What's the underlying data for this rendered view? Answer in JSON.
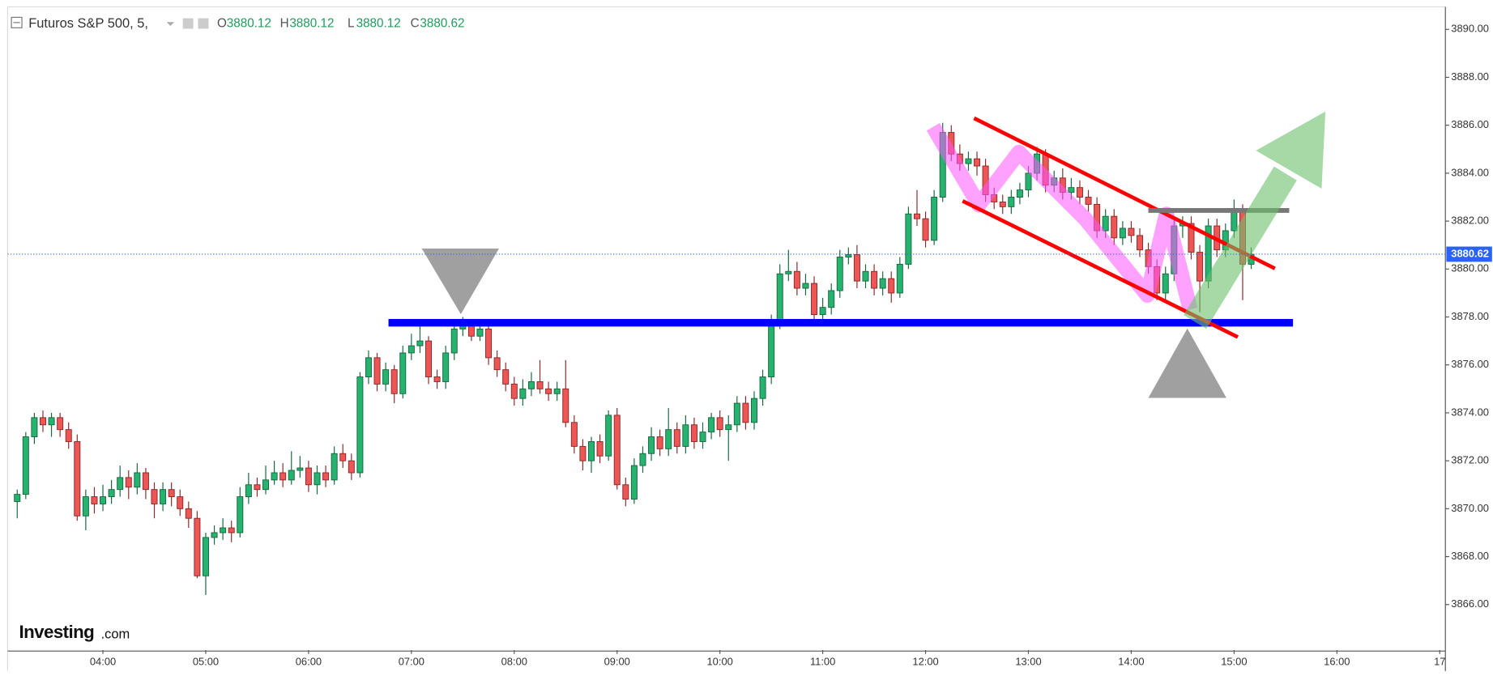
{
  "header": {
    "title": "Futuros S&P 500, 5,",
    "open_label": "O",
    "open": 3880.12,
    "high_label": "H",
    "high": 3880.12,
    "low_label": "L",
    "low": 3880.12,
    "close_label": "C",
    "close": 3880.62
  },
  "logo": {
    "brand": "Investing",
    "suffix": ".com"
  },
  "chart_data": {
    "type": "candlestick",
    "up_color": "#26b36f",
    "down_color": "#ee5555",
    "last_price": 3880.62,
    "xlim": [
      184.4,
      1023.3
    ],
    "xticks": [
      {
        "value": 240,
        "label": "04:00"
      },
      {
        "value": 300,
        "label": "05:00"
      },
      {
        "value": 360,
        "label": "06:00"
      },
      {
        "value": 420,
        "label": "07:00"
      },
      {
        "value": 480,
        "label": "08:00"
      },
      {
        "value": 540,
        "label": "09:00"
      },
      {
        "value": 600,
        "label": "10:00"
      },
      {
        "value": 660,
        "label": "11:00"
      },
      {
        "value": 720,
        "label": "12:00"
      },
      {
        "value": 780,
        "label": "13:00"
      },
      {
        "value": 840,
        "label": "14:00"
      },
      {
        "value": 900,
        "label": "15:00"
      },
      {
        "value": 960,
        "label": "16:00"
      },
      {
        "value": 1020,
        "label": "17"
      }
    ],
    "ylim": [
      3864.1,
      3890.9
    ],
    "yticks": [
      {
        "value": 3866,
        "label": "3866.00"
      },
      {
        "value": 3868,
        "label": "3868.00"
      },
      {
        "value": 3870,
        "label": "3870.00"
      },
      {
        "value": 3872,
        "label": "3872.00"
      },
      {
        "value": 3874,
        "label": "3874.00"
      },
      {
        "value": 3876,
        "label": "3876.00"
      },
      {
        "value": 3878,
        "label": "3878.00"
      },
      {
        "value": 3880,
        "label": "3880.00"
      },
      {
        "value": 3882,
        "label": "3882.00"
      },
      {
        "value": 3884,
        "label": "3884.00"
      },
      {
        "value": 3886,
        "label": "3886.00"
      },
      {
        "value": 3888,
        "label": "3888.00"
      },
      {
        "value": 3890,
        "label": "3890.00"
      }
    ],
    "x": [
      190,
      195,
      200,
      205,
      210,
      215,
      220,
      225,
      230,
      235,
      240,
      245,
      250,
      255,
      260,
      265,
      270,
      275,
      280,
      285,
      290,
      295,
      300,
      305,
      310,
      315,
      320,
      325,
      330,
      335,
      340,
      345,
      350,
      355,
      360,
      365,
      370,
      375,
      380,
      385,
      390,
      395,
      400,
      405,
      410,
      415,
      420,
      425,
      430,
      435,
      440,
      445,
      450,
      455,
      460,
      465,
      470,
      475,
      480,
      485,
      490,
      495,
      500,
      505,
      510,
      515,
      520,
      525,
      530,
      535,
      540,
      545,
      550,
      555,
      560,
      565,
      570,
      575,
      580,
      585,
      590,
      595,
      600,
      605,
      610,
      615,
      620,
      625,
      630,
      635,
      640,
      645,
      650,
      655,
      660,
      665,
      670,
      675,
      680,
      685,
      690,
      695,
      700,
      705,
      710,
      715,
      720,
      725,
      730,
      735,
      740,
      745,
      750,
      755,
      760,
      765,
      770,
      775,
      780,
      785,
      790,
      795,
      800,
      805,
      810,
      815,
      820,
      825,
      830,
      835,
      840,
      845,
      850,
      855,
      860,
      865,
      870,
      875,
      880,
      885,
      890,
      895,
      900,
      905,
      910
    ],
    "ohlc": [
      [
        3870.3,
        3870.8,
        3869.6,
        3870.6
      ],
      [
        3870.6,
        3873.2,
        3870.4,
        3873.0
      ],
      [
        3873.0,
        3874.0,
        3872.7,
        3873.8
      ],
      [
        3873.8,
        3874.1,
        3873.2,
        3873.5
      ],
      [
        3873.5,
        3874.0,
        3873.0,
        3873.8
      ],
      [
        3873.8,
        3874.0,
        3873.0,
        3873.3
      ],
      [
        3873.3,
        3873.6,
        3872.5,
        3872.8
      ],
      [
        3872.8,
        3873.1,
        3869.5,
        3869.7
      ],
      [
        3869.7,
        3870.8,
        3869.1,
        3870.5
      ],
      [
        3870.5,
        3870.9,
        3869.8,
        3870.2
      ],
      [
        3870.2,
        3871.0,
        3869.9,
        3870.5
      ],
      [
        3870.5,
        3871.2,
        3870.2,
        3870.8
      ],
      [
        3870.8,
        3871.8,
        3870.5,
        3871.3
      ],
      [
        3871.3,
        3871.6,
        3870.4,
        3870.9
      ],
      [
        3870.9,
        3871.9,
        3870.6,
        3871.5
      ],
      [
        3871.5,
        3871.7,
        3870.4,
        3870.8
      ],
      [
        3870.8,
        3871.1,
        3869.6,
        3870.2
      ],
      [
        3870.2,
        3871.1,
        3869.9,
        3870.8
      ],
      [
        3870.8,
        3871.1,
        3870.1,
        3870.5
      ],
      [
        3870.5,
        3870.8,
        3869.7,
        3870.0
      ],
      [
        3870.0,
        3870.3,
        3869.2,
        3869.6
      ],
      [
        3869.6,
        3869.9,
        3867.1,
        3867.2
      ],
      [
        3867.2,
        3869.0,
        3866.4,
        3868.8
      ],
      [
        3868.8,
        3869.3,
        3868.5,
        3869.0
      ],
      [
        3869.0,
        3869.6,
        3868.7,
        3869.2
      ],
      [
        3869.2,
        3869.5,
        3868.6,
        3869.0
      ],
      [
        3869.0,
        3870.9,
        3868.8,
        3870.5
      ],
      [
        3870.5,
        3871.5,
        3870.2,
        3871.0
      ],
      [
        3871.0,
        3871.3,
        3870.5,
        3870.8
      ],
      [
        3870.8,
        3871.8,
        3870.6,
        3871.2
      ],
      [
        3871.2,
        3872.0,
        3871.0,
        3871.5
      ],
      [
        3871.5,
        3871.9,
        3870.9,
        3871.2
      ],
      [
        3871.2,
        3872.4,
        3871.0,
        3871.6
      ],
      [
        3871.6,
        3872.2,
        3871.3,
        3871.7
      ],
      [
        3871.7,
        3872.0,
        3870.7,
        3871.0
      ],
      [
        3871.0,
        3871.8,
        3870.6,
        3871.5
      ],
      [
        3871.5,
        3871.8,
        3870.9,
        3871.2
      ],
      [
        3871.2,
        3872.6,
        3871.0,
        3872.3
      ],
      [
        3872.3,
        3872.7,
        3871.7,
        3872.0
      ],
      [
        3872.0,
        3872.3,
        3871.2,
        3871.5
      ],
      [
        3871.5,
        3875.7,
        3871.3,
        3875.5
      ],
      [
        3875.5,
        3876.6,
        3875.2,
        3876.3
      ],
      [
        3876.3,
        3876.5,
        3874.9,
        3875.2
      ],
      [
        3875.2,
        3876.1,
        3874.9,
        3875.8
      ],
      [
        3875.8,
        3876.0,
        3874.4,
        3874.8
      ],
      [
        3874.8,
        3876.8,
        3874.6,
        3876.5
      ],
      [
        3876.5,
        3877.3,
        3876.2,
        3876.8
      ],
      [
        3876.8,
        3877.8,
        3876.5,
        3877.0
      ],
      [
        3877.0,
        3877.2,
        3875.2,
        3875.5
      ],
      [
        3875.5,
        3875.8,
        3875.0,
        3875.3
      ],
      [
        3875.3,
        3876.8,
        3875.0,
        3876.5
      ],
      [
        3876.5,
        3877.7,
        3876.2,
        3877.5
      ],
      [
        3877.5,
        3878.0,
        3877.2,
        3877.7
      ],
      [
        3877.7,
        3877.9,
        3877.0,
        3877.2
      ],
      [
        3877.2,
        3877.8,
        3877.0,
        3877.5
      ],
      [
        3877.5,
        3877.7,
        3876.0,
        3876.3
      ],
      [
        3876.3,
        3876.6,
        3875.5,
        3875.8
      ],
      [
        3875.8,
        3876.1,
        3874.9,
        3875.2
      ],
      [
        3875.2,
        3875.5,
        3874.3,
        3874.6
      ],
      [
        3874.6,
        3875.4,
        3874.3,
        3875.0
      ],
      [
        3875.0,
        3875.7,
        3874.7,
        3875.3
      ],
      [
        3875.3,
        3876.2,
        3874.8,
        3875.0
      ],
      [
        3875.0,
        3875.3,
        3874.5,
        3874.8
      ],
      [
        3874.8,
        3875.3,
        3874.5,
        3875.0
      ],
      [
        3875.0,
        3876.2,
        3873.4,
        3873.6
      ],
      [
        3873.6,
        3873.9,
        3872.3,
        3872.6
      ],
      [
        3872.6,
        3872.9,
        3871.6,
        3872.0
      ],
      [
        3872.0,
        3873.0,
        3871.5,
        3872.8
      ],
      [
        3872.8,
        3873.1,
        3871.9,
        3872.2
      ],
      [
        3872.2,
        3874.1,
        3872.0,
        3873.9
      ],
      [
        3873.9,
        3874.2,
        3870.8,
        3871.0
      ],
      [
        3871.0,
        3871.3,
        3870.1,
        3870.4
      ],
      [
        3870.4,
        3872.1,
        3870.2,
        3871.8
      ],
      [
        3871.8,
        3872.6,
        3871.5,
        3872.3
      ],
      [
        3872.3,
        3873.4,
        3872.0,
        3873.0
      ],
      [
        3873.0,
        3873.3,
        3872.2,
        3872.5
      ],
      [
        3872.5,
        3874.2,
        3872.2,
        3873.3
      ],
      [
        3873.3,
        3873.6,
        3872.3,
        3872.6
      ],
      [
        3872.6,
        3873.9,
        3872.3,
        3873.5
      ],
      [
        3873.5,
        3873.8,
        3872.5,
        3872.8
      ],
      [
        3872.8,
        3873.6,
        3872.5,
        3873.2
      ],
      [
        3873.2,
        3874.0,
        3872.9,
        3873.8
      ],
      [
        3873.8,
        3874.1,
        3873.0,
        3873.3
      ],
      [
        3873.3,
        3873.9,
        3872.0,
        3873.5
      ],
      [
        3873.5,
        3874.7,
        3873.2,
        3874.4
      ],
      [
        3874.4,
        3874.7,
        3873.3,
        3873.6
      ],
      [
        3873.6,
        3874.9,
        3873.3,
        3874.6
      ],
      [
        3874.6,
        3875.8,
        3874.3,
        3875.5
      ],
      [
        3875.5,
        3878.1,
        3875.2,
        3877.8
      ],
      [
        3877.8,
        3880.2,
        3877.5,
        3879.8
      ],
      [
        3879.8,
        3880.8,
        3879.5,
        3879.9
      ],
      [
        3879.9,
        3880.3,
        3878.9,
        3879.2
      ],
      [
        3879.2,
        3879.8,
        3878.9,
        3879.4
      ],
      [
        3879.4,
        3879.7,
        3877.8,
        3878.1
      ],
      [
        3878.1,
        3878.8,
        3877.8,
        3878.4
      ],
      [
        3878.4,
        3879.4,
        3878.1,
        3879.1
      ],
      [
        3879.1,
        3880.8,
        3878.8,
        3880.5
      ],
      [
        3880.5,
        3880.9,
        3880.2,
        3880.6
      ],
      [
        3880.6,
        3881.0,
        3879.2,
        3879.5
      ],
      [
        3879.5,
        3880.2,
        3879.2,
        3879.9
      ],
      [
        3879.9,
        3880.2,
        3878.9,
        3879.2
      ],
      [
        3879.2,
        3879.9,
        3878.9,
        3879.6
      ],
      [
        3879.6,
        3879.9,
        3878.6,
        3879.0
      ],
      [
        3879.0,
        3880.5,
        3878.8,
        3880.2
      ],
      [
        3880.2,
        3882.6,
        3880.0,
        3882.3
      ],
      [
        3882.3,
        3883.3,
        3881.8,
        3882.1
      ],
      [
        3882.1,
        3882.4,
        3880.9,
        3881.2
      ],
      [
        3881.2,
        3883.3,
        3881.0,
        3883.0
      ],
      [
        3883.0,
        3886.1,
        3882.8,
        3885.7
      ],
      [
        3885.7,
        3886.0,
        3884.5,
        3884.8
      ],
      [
        3884.8,
        3885.2,
        3884.1,
        3884.4
      ],
      [
        3884.4,
        3884.9,
        3884.1,
        3884.6
      ],
      [
        3884.6,
        3884.9,
        3883.9,
        3884.3
      ],
      [
        3884.3,
        3884.6,
        3882.8,
        3883.1
      ],
      [
        3883.1,
        3883.4,
        3882.5,
        3882.8
      ],
      [
        3882.8,
        3883.1,
        3882.3,
        3882.6
      ],
      [
        3882.6,
        3883.3,
        3882.3,
        3883.0
      ],
      [
        3883.0,
        3883.6,
        3882.7,
        3883.3
      ],
      [
        3883.3,
        3884.3,
        3883.0,
        3884.0
      ],
      [
        3884.0,
        3885.1,
        3883.7,
        3884.8
      ],
      [
        3884.8,
        3885.0,
        3883.2,
        3883.5
      ],
      [
        3883.5,
        3884.1,
        3883.2,
        3883.8
      ],
      [
        3883.8,
        3884.2,
        3882.9,
        3883.2
      ],
      [
        3883.2,
        3883.8,
        3882.9,
        3883.4
      ],
      [
        3883.4,
        3883.7,
        3882.7,
        3883.0
      ],
      [
        3883.0,
        3883.3,
        3882.4,
        3882.7
      ],
      [
        3882.7,
        3883.0,
        3881.3,
        3881.6
      ],
      [
        3881.6,
        3882.5,
        3881.3,
        3882.2
      ],
      [
        3882.2,
        3882.5,
        3881.0,
        3881.3
      ],
      [
        3881.3,
        3882.0,
        3881.0,
        3881.7
      ],
      [
        3881.7,
        3882.0,
        3881.1,
        3881.4
      ],
      [
        3881.4,
        3881.7,
        3880.5,
        3880.8
      ],
      [
        3880.8,
        3881.1,
        3879.8,
        3880.1
      ],
      [
        3880.1,
        3880.4,
        3878.7,
        3879.0
      ],
      [
        3879.0,
        3880.1,
        3878.7,
        3879.8
      ],
      [
        3879.8,
        3882.1,
        3879.5,
        3881.8
      ],
      [
        3881.8,
        3882.2,
        3881.3,
        3881.9
      ],
      [
        3881.9,
        3882.2,
        3880.4,
        3880.7
      ],
      [
        3880.7,
        3881.0,
        3878.2,
        3879.5
      ],
      [
        3879.5,
        3882.1,
        3879.2,
        3881.8
      ],
      [
        3881.8,
        3882.1,
        3880.5,
        3880.8
      ],
      [
        3880.8,
        3881.9,
        3880.5,
        3881.6
      ],
      [
        3881.6,
        3882.9,
        3881.3,
        3882.4
      ],
      [
        3882.4,
        3882.7,
        3878.7,
        3880.2
      ],
      [
        3880.2,
        3880.9,
        3880.0,
        3880.62
      ]
    ]
  }
}
